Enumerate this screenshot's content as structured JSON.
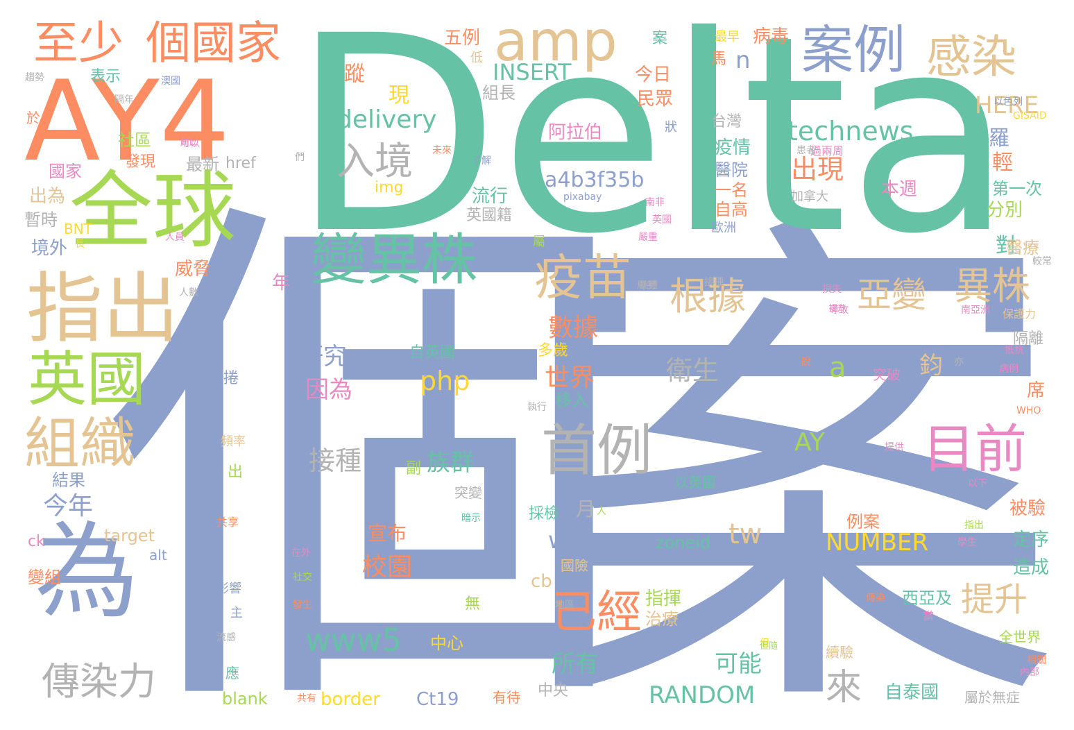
{
  "palette": {
    "green": "#66c2a5",
    "orange": "#fc8d62",
    "blue": "#8da0cb",
    "pink": "#e78ac3",
    "lime": "#a6d854",
    "yellow": "#ffd92f",
    "tan": "#e5c494",
    "gray": "#b3b3b3"
  },
  "words": [
    {
      "text": "個",
      "color": "blue"
    },
    {
      "text": "案",
      "color": "blue"
    },
    {
      "text": "Delta",
      "color": "green"
    },
    {
      "text": "AY4",
      "color": "orange"
    },
    {
      "text": "全球",
      "color": "lime"
    },
    {
      "text": "指出",
      "color": "tan"
    },
    {
      "text": "為",
      "color": "blue"
    },
    {
      "text": "英國",
      "color": "lime"
    },
    {
      "text": "組織",
      "color": "tan"
    },
    {
      "text": "至少",
      "color": "orange"
    },
    {
      "text": "個國家",
      "color": "orange"
    },
    {
      "text": "amp",
      "color": "tan"
    },
    {
      "text": "案例",
      "color": "blue"
    },
    {
      "text": "感染",
      "color": "tan"
    },
    {
      "text": "變異株",
      "color": "green"
    },
    {
      "text": "疫苗",
      "color": "tan"
    },
    {
      "text": "首例",
      "color": "gray"
    },
    {
      "text": "目前",
      "color": "pink"
    },
    {
      "text": "已經",
      "color": "orange"
    },
    {
      "text": "傳染力",
      "color": "gray"
    },
    {
      "text": "入境",
      "color": "gray"
    },
    {
      "text": "亞變",
      "color": "tan"
    },
    {
      "text": "異株",
      "color": "tan"
    },
    {
      "text": "根據",
      "color": "tan"
    },
    {
      "text": "technews",
      "color": "green"
    },
    {
      "text": "delivery",
      "color": "green"
    },
    {
      "text": "a4b3f35b",
      "color": "blue"
    },
    {
      "text": "www5",
      "color": "green"
    },
    {
      "text": "www",
      "color": "blue"
    },
    {
      "text": "NUMBER",
      "color": "yellow"
    },
    {
      "text": "RANDOM",
      "color": "green"
    },
    {
      "text": "INSERT",
      "color": "green"
    },
    {
      "text": "HERE",
      "color": "tan"
    },
    {
      "text": "提升",
      "color": "tan"
    },
    {
      "text": "來",
      "color": "gray"
    },
    {
      "text": "數據",
      "color": "orange"
    },
    {
      "text": "世界",
      "color": "orange"
    },
    {
      "text": "衛生",
      "color": "gray"
    },
    {
      "text": "php",
      "color": "yellow"
    },
    {
      "text": "a",
      "color": "lime"
    },
    {
      "text": "AY",
      "color": "lime"
    },
    {
      "text": "tw",
      "color": "tan"
    },
    {
      "text": "n",
      "color": "blue"
    },
    {
      "text": "出現",
      "color": "orange"
    },
    {
      "text": "今年",
      "color": "blue"
    },
    {
      "text": "研究",
      "color": "blue"
    },
    {
      "text": "因為",
      "color": "pink"
    },
    {
      "text": "族群",
      "color": "green"
    },
    {
      "text": "接種",
      "color": "gray"
    },
    {
      "text": "校園",
      "color": "orange"
    },
    {
      "text": "宣布",
      "color": "orange"
    },
    {
      "text": "可能",
      "color": "green"
    },
    {
      "text": "所有",
      "color": "green"
    },
    {
      "text": "自泰國",
      "color": "green"
    },
    {
      "text": "鈞",
      "color": "tan"
    },
    {
      "text": "五例",
      "color": "orange"
    },
    {
      "text": "病毒",
      "color": "orange"
    },
    {
      "text": "蹤",
      "color": "orange"
    },
    {
      "text": "現",
      "color": "yellow"
    },
    {
      "text": "組長",
      "color": "gray"
    },
    {
      "text": "今日",
      "color": "orange"
    },
    {
      "text": "民眾",
      "color": "orange"
    },
    {
      "text": "阿拉伯",
      "color": "pink"
    },
    {
      "text": "台灣",
      "color": "gray"
    },
    {
      "text": "疫情",
      "color": "green"
    },
    {
      "text": "醫院",
      "color": "blue"
    },
    {
      "text": "一名",
      "color": "orange"
    },
    {
      "text": "自高",
      "color": "orange"
    },
    {
      "text": "本週",
      "color": "pink"
    },
    {
      "text": "羅",
      "color": "blue"
    },
    {
      "text": "輕",
      "color": "orange"
    },
    {
      "text": "第一次",
      "color": "green"
    },
    {
      "text": "分別",
      "color": "lime"
    },
    {
      "text": "對",
      "color": "green"
    },
    {
      "text": "醫療",
      "color": "tan"
    },
    {
      "text": "流行",
      "color": "green"
    },
    {
      "text": "英國籍",
      "color": "gray"
    },
    {
      "text": "最新",
      "color": "gray"
    },
    {
      "text": "href",
      "color": "gray"
    },
    {
      "text": "img",
      "color": "yellow"
    },
    {
      "text": "社區",
      "color": "lime"
    },
    {
      "text": "國家",
      "color": "pink"
    },
    {
      "text": "發現",
      "color": "orange"
    },
    {
      "text": "出為",
      "color": "tan"
    },
    {
      "text": "暫時",
      "color": "gray"
    },
    {
      "text": "BNT",
      "color": "yellow"
    },
    {
      "text": "境外",
      "color": "blue"
    },
    {
      "text": "威脅",
      "color": "orange"
    },
    {
      "text": "年",
      "color": "pink"
    },
    {
      "text": "表示",
      "color": "green"
    },
    {
      "text": "於",
      "color": "orange"
    },
    {
      "text": "結果",
      "color": "blue"
    },
    {
      "text": "target",
      "color": "tan"
    },
    {
      "text": "alt",
      "color": "blue"
    },
    {
      "text": "ck",
      "color": "pink"
    },
    {
      "text": "變組",
      "color": "orange"
    },
    {
      "text": "blank",
      "color": "lime"
    },
    {
      "text": "border",
      "color": "yellow"
    },
    {
      "text": "Ct19",
      "color": "blue"
    },
    {
      "text": "中心",
      "color": "yellow"
    },
    {
      "text": "自英國",
      "color": "green"
    },
    {
      "text": "移入",
      "color": "green"
    },
    {
      "text": "多歲",
      "color": "yellow"
    },
    {
      "text": "月",
      "color": "gray"
    },
    {
      "text": "cb",
      "color": "tan"
    },
    {
      "text": "src",
      "color": "blue"
    },
    {
      "text": "avw",
      "color": "blue"
    },
    {
      "text": "採檢",
      "color": "green"
    },
    {
      "text": "zoneid",
      "color": "green"
    },
    {
      "text": "指揮",
      "color": "lime"
    },
    {
      "text": "治療",
      "color": "tan"
    },
    {
      "text": "西亞及",
      "color": "green"
    },
    {
      "text": "例案",
      "color": "orange"
    },
    {
      "text": "定序",
      "color": "green"
    },
    {
      "text": "被驗",
      "color": "orange"
    },
    {
      "text": "造成",
      "color": "green"
    },
    {
      "text": "席",
      "color": "orange"
    },
    {
      "text": "隔離",
      "color": "gray"
    },
    {
      "text": "全世界",
      "color": "lime"
    },
    {
      "text": "中央",
      "color": "gray"
    },
    {
      "text": "有待",
      "color": "orange"
    },
    {
      "text": "屬於無症",
      "color": "gray"
    },
    {
      "text": "副",
      "color": "lime"
    },
    {
      "text": "突變",
      "color": "gray"
    },
    {
      "text": "無",
      "color": "lime"
    },
    {
      "text": "國險",
      "color": "tan"
    },
    {
      "text": "後",
      "color": "blue"
    },
    {
      "text": "突破",
      "color": "pink"
    },
    {
      "text": "續驗",
      "color": "tan"
    },
    {
      "text": "以英國",
      "color": "green"
    },
    {
      "text": "案",
      "color": "green"
    },
    {
      "text": "最早",
      "color": "yellow"
    },
    {
      "text": "馬",
      "color": "orange"
    },
    {
      "text": "低",
      "color": "tan"
    },
    {
      "text": "加拿大",
      "color": "gray"
    },
    {
      "text": "歐洲",
      "color": "blue"
    },
    {
      "text": "屬",
      "color": "lime"
    },
    {
      "text": "應",
      "color": "green"
    },
    {
      "text": "影響",
      "color": "blue"
    },
    {
      "text": "主",
      "color": "blue"
    },
    {
      "text": "頻率",
      "color": "tan"
    },
    {
      "text": "出",
      "color": "lime"
    },
    {
      "text": "捲",
      "color": "blue"
    },
    {
      "text": "共享",
      "color": "orange"
    },
    {
      "text": "保護力",
      "color": "tan"
    },
    {
      "text": "WHO",
      "color": "orange"
    },
    {
      "text": "GISAID",
      "color": "yellow"
    },
    {
      "text": "pixabay",
      "color": "blue"
    },
    {
      "text": "以色列",
      "color": "blue"
    },
    {
      "text": "趨勢",
      "color": "gray"
    },
    {
      "text": "接種",
      "color": "gray"
    },
    {
      "text": "澳國",
      "color": "blue"
    },
    {
      "text": "了解",
      "color": "blue"
    },
    {
      "text": "隔年",
      "color": "gray"
    },
    {
      "text": "可以",
      "color": "pink"
    },
    {
      "text": "人員",
      "color": "pink"
    },
    {
      "text": "們",
      "color": "gray"
    },
    {
      "text": "未來",
      "color": "orange"
    },
    {
      "text": "病例",
      "color": "pink"
    },
    {
      "text": "抵抗",
      "color": "pink"
    },
    {
      "text": "相關",
      "color": "orange"
    },
    {
      "text": "內部",
      "color": "pink"
    },
    {
      "text": "較常",
      "color": "gray"
    },
    {
      "text": "以下",
      "color": "pink"
    },
    {
      "text": "南亞洲",
      "color": "pink"
    },
    {
      "text": "提供",
      "color": "pink"
    },
    {
      "text": "傳染",
      "color": "orange"
    },
    {
      "text": "發生",
      "color": "orange"
    },
    {
      "text": "社交",
      "color": "lime"
    },
    {
      "text": "在外",
      "color": "pink"
    },
    {
      "text": "學生",
      "color": "pink"
    },
    {
      "text": "人",
      "color": "lime"
    },
    {
      "text": "共有",
      "color": "orange"
    },
    {
      "text": "嚴重",
      "color": "pink"
    },
    {
      "text": "局勢",
      "color": "gray"
    },
    {
      "text": "英國",
      "color": "pink"
    },
    {
      "text": "導致",
      "color": "pink"
    },
    {
      "text": "損失",
      "color": "pink"
    },
    {
      "text": "說",
      "color": "orange"
    },
    {
      "text": "長",
      "color": "yellow"
    },
    {
      "text": "提升",
      "color": "pink"
    },
    {
      "text": "但",
      "color": "yellow"
    },
    {
      "text": "暗示",
      "color": "green"
    },
    {
      "text": "流感",
      "color": "gray"
    },
    {
      "text": "當",
      "color": "pink"
    },
    {
      "text": "患者",
      "color": "gray"
    },
    {
      "text": "抗體",
      "color": "gray"
    },
    {
      "text": "過兩周",
      "color": "pink"
    },
    {
      "text": "狀",
      "color": "blue"
    },
    {
      "text": "南非",
      "color": "pink"
    },
    {
      "text": "指出",
      "color": "lime"
    },
    {
      "text": "人數",
      "color": "gray"
    },
    {
      "text": "執行",
      "color": "gray"
    },
    {
      "text": "但隨",
      "color": "lime"
    },
    {
      "text": "所以",
      "color": "pink"
    },
    {
      "text": "亦",
      "color": "gray"
    },
    {
      "text": "地區",
      "color": "gray"
    }
  ]
}
